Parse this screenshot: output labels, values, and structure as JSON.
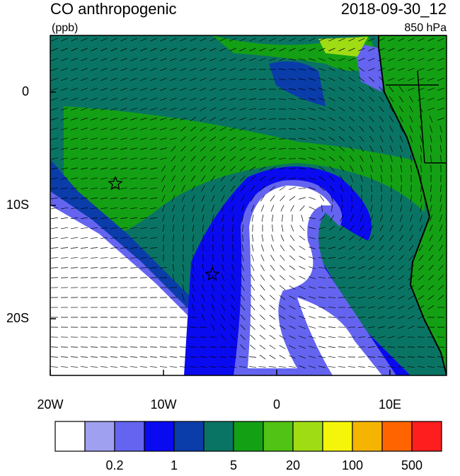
{
  "chart_data": {
    "type": "map",
    "title": "CO anthropogenic",
    "units": "(ppb)",
    "time": "2018-09-30_12",
    "level": "850 hPa",
    "xlim": [
      -20,
      15
    ],
    "ylim": [
      -25,
      5
    ],
    "xticks": [
      {
        "value": -20,
        "label": "20W"
      },
      {
        "value": -10,
        "label": "10W"
      },
      0,
      {
        "value": 10,
        "label": "10E"
      }
    ],
    "yticks": [
      0,
      {
        "value": -10,
        "label": "10S"
      },
      {
        "value": -20,
        "label": "20S"
      }
    ],
    "colorbar": {
      "colors": [
        "#ffffff",
        "#a0a0f0",
        "#6464f0",
        "#0a0af0",
        "#0a3caa",
        "#0a7464",
        "#14a014",
        "#50c314",
        "#a0dc14",
        "#f5f50a",
        "#f5b400",
        "#ff6400",
        "#ff1e1e"
      ],
      "labels": [
        0.2,
        1,
        5,
        20,
        100,
        500
      ]
    }
  }
}
